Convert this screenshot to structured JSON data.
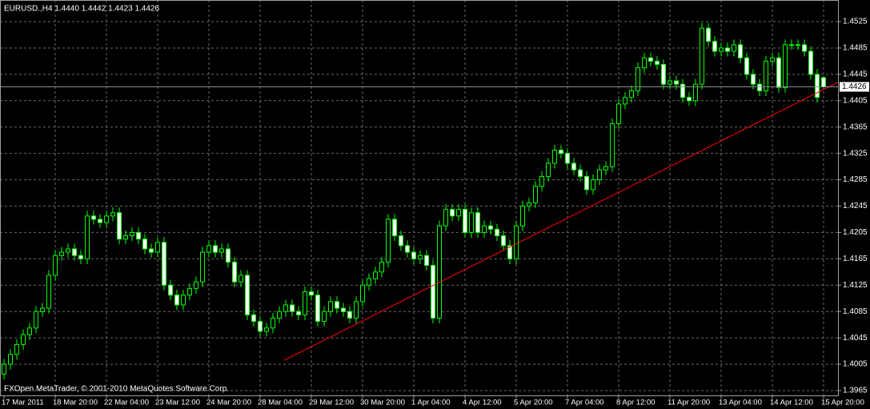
{
  "chart_data": {
    "type": "candlestick",
    "title": "EURUSD.,H4  1.4440 1.4442 1.4423 1.4426",
    "footer": "FXOpen MetaTrader, © 2001-2010 MetaQuotes Software Corp.",
    "categories": [
      "17 Mar 2011",
      null,
      null,
      null,
      null,
      null,
      null,
      null,
      "18 Mar 20:00",
      null,
      null,
      null,
      null,
      null,
      null,
      null,
      "22 Mar 04:00",
      null,
      null,
      null,
      null,
      null,
      null,
      null,
      "23 Mar 12:00",
      null,
      null,
      null,
      null,
      null,
      null,
      null,
      "24 Mar 20:00",
      null,
      null,
      null,
      null,
      null,
      null,
      null,
      "28 Mar 04:00",
      null,
      null,
      null,
      null,
      null,
      null,
      null,
      "29 Mar 12:00",
      null,
      null,
      null,
      null,
      null,
      null,
      null,
      "30 Mar 20:00",
      null,
      null,
      null,
      null,
      null,
      null,
      null,
      "1 Apr 04:00",
      null,
      null,
      null,
      null,
      null,
      null,
      null,
      "4 Apr 12:00",
      null,
      null,
      null,
      null,
      null,
      null,
      null,
      "5 Apr 20:00",
      null,
      null,
      null,
      null,
      null,
      null,
      null,
      "7 Apr 04:00",
      null,
      null,
      null,
      null,
      null,
      null,
      null,
      "8 Apr 12:00",
      null,
      null,
      null,
      null,
      null,
      null,
      null,
      "11 Apr 20:00",
      null,
      null,
      null,
      null,
      null,
      null,
      null,
      "13 Apr 04:00",
      null,
      null,
      null,
      null,
      null,
      null,
      null,
      "14 Apr 12:00",
      null,
      null,
      null,
      null,
      null,
      null,
      null,
      "15 Apr 20:00"
    ],
    "open": [
      1.399,
      1.4005,
      1.402,
      1.4035,
      1.405,
      1.406,
      1.4085,
      1.409,
      1.414,
      1.417,
      1.4175,
      1.418,
      1.417,
      1.4165,
      1.423,
      1.4225,
      1.422,
      1.423,
      1.4235,
      1.4195,
      1.42,
      1.4205,
      1.4195,
      1.418,
      1.4175,
      1.419,
      1.4125,
      1.411,
      1.4095,
      1.411,
      1.412,
      1.413,
      1.4175,
      1.4185,
      1.4175,
      1.418,
      1.416,
      1.413,
      1.414,
      1.408,
      1.407,
      1.4055,
      1.406,
      1.4075,
      1.4085,
      1.4095,
      1.4085,
      1.408,
      1.4115,
      1.411,
      1.407,
      1.4085,
      1.41,
      1.409,
      1.4085,
      1.4075,
      1.41,
      1.4125,
      1.4135,
      1.4145,
      1.416,
      1.4225,
      1.42,
      1.4185,
      1.4175,
      1.4165,
      1.417,
      1.4155,
      1.4075,
      1.4215,
      1.424,
      1.423,
      1.424,
      1.4205,
      1.4235,
      1.4205,
      1.4215,
      1.421,
      1.42,
      1.4185,
      1.4165,
      1.4215,
      1.4245,
      1.425,
      1.4275,
      1.429,
      1.431,
      1.433,
      1.4325,
      1.431,
      1.43,
      1.429,
      1.427,
      1.4285,
      1.43,
      1.4305,
      1.437,
      1.44,
      1.441,
      1.442,
      1.4455,
      1.447,
      1.4465,
      1.446,
      1.443,
      1.4435,
      1.443,
      1.441,
      1.4405,
      1.443,
      1.4515,
      1.4495,
      1.448,
      1.4485,
      1.448,
      1.449,
      1.447,
      1.4445,
      1.443,
      1.442,
      1.4465,
      1.447,
      1.4425,
      1.449,
      1.449,
      1.449,
      1.448,
      1.4445,
      1.444
    ],
    "high": [
      1.4013,
      1.4028,
      1.4043,
      1.4058,
      1.4068,
      1.4093,
      1.4098,
      1.4148,
      1.4178,
      1.4183,
      1.4188,
      1.4188,
      1.4178,
      1.4238,
      1.4238,
      1.4233,
      1.4238,
      1.4243,
      1.4243,
      1.4208,
      1.4213,
      1.4213,
      1.4203,
      1.4188,
      1.4198,
      1.4198,
      1.4133,
      1.4118,
      1.4118,
      1.4128,
      1.4138,
      1.4183,
      1.4193,
      1.4193,
      1.4188,
      1.4188,
      1.4168,
      1.4148,
      1.4148,
      1.4088,
      1.4078,
      1.4068,
      1.4083,
      1.4093,
      1.4103,
      1.4103,
      1.4093,
      1.4123,
      1.4123,
      1.4118,
      1.4093,
      1.4108,
      1.4108,
      1.4098,
      1.4093,
      1.4108,
      1.4133,
      1.4143,
      1.4153,
      1.4168,
      1.4233,
      1.4233,
      1.4208,
      1.4193,
      1.4183,
      1.4178,
      1.4178,
      1.4163,
      1.4223,
      1.4248,
      1.4248,
      1.4248,
      1.4248,
      1.4243,
      1.4243,
      1.4223,
      1.4223,
      1.4218,
      1.4208,
      1.4193,
      1.4223,
      1.4253,
      1.4258,
      1.4283,
      1.4298,
      1.4318,
      1.4338,
      1.4338,
      1.4333,
      1.4318,
      1.4308,
      1.4298,
      1.4293,
      1.4308,
      1.4313,
      1.4378,
      1.4408,
      1.4418,
      1.4428,
      1.4463,
      1.4478,
      1.4478,
      1.4473,
      1.4468,
      1.4443,
      1.4443,
      1.4438,
      1.4418,
      1.4438,
      1.4523,
      1.4523,
      1.4503,
      1.4493,
      1.4493,
      1.4498,
      1.4498,
      1.4478,
      1.4453,
      1.4438,
      1.4473,
      1.4478,
      1.4478,
      1.4498,
      1.4498,
      1.4498,
      1.4498,
      1.4488,
      1.4453,
      1.4442
    ],
    "low": [
      1.3982,
      1.3997,
      1.4012,
      1.4027,
      1.4042,
      1.4052,
      1.4077,
      1.4082,
      1.4132,
      1.4162,
      1.4167,
      1.4162,
      1.4157,
      1.4157,
      1.4217,
      1.4212,
      1.4212,
      1.4222,
      1.4187,
      1.4187,
      1.4192,
      1.4187,
      1.4172,
      1.4167,
      1.4167,
      1.4117,
      1.4102,
      1.4087,
      1.4087,
      1.4102,
      1.4112,
      1.4122,
      1.4167,
      1.4167,
      1.4167,
      1.4152,
      1.4122,
      1.4122,
      1.4072,
      1.4062,
      1.4047,
      1.4047,
      1.4052,
      1.4067,
      1.4077,
      1.4077,
      1.4072,
      1.4072,
      1.4102,
      1.4062,
      1.4062,
      1.4077,
      1.4082,
      1.4077,
      1.4067,
      1.4067,
      1.4092,
      1.4117,
      1.4127,
      1.4137,
      1.4152,
      1.4192,
      1.4177,
      1.4167,
      1.4157,
      1.4157,
      1.4147,
      1.4067,
      1.4067,
      1.4207,
      1.4222,
      1.4222,
      1.4197,
      1.4197,
      1.4197,
      1.4197,
      1.4202,
      1.4192,
      1.4177,
      1.4157,
      1.4157,
      1.4207,
      1.4237,
      1.4242,
      1.4267,
      1.4282,
      1.4302,
      1.4317,
      1.4302,
      1.4292,
      1.4282,
      1.4262,
      1.4262,
      1.4277,
      1.4292,
      1.4297,
      1.4362,
      1.4392,
      1.4402,
      1.4412,
      1.4447,
      1.4457,
      1.4452,
      1.4422,
      1.4422,
      1.4422,
      1.4402,
      1.4397,
      1.4397,
      1.4422,
      1.4487,
      1.4472,
      1.4472,
      1.4472,
      1.4472,
      1.4462,
      1.4437,
      1.4422,
      1.4412,
      1.4412,
      1.4457,
      1.4417,
      1.4417,
      1.4482,
      1.4482,
      1.4472,
      1.4437,
      1.4402,
      1.4423
    ],
    "close": [
      1.4005,
      1.402,
      1.4035,
      1.405,
      1.406,
      1.4085,
      1.409,
      1.414,
      1.417,
      1.4175,
      1.418,
      1.417,
      1.4165,
      1.423,
      1.4225,
      1.422,
      1.423,
      1.4235,
      1.4195,
      1.42,
      1.4205,
      1.4195,
      1.418,
      1.4175,
      1.419,
      1.4125,
      1.411,
      1.4095,
      1.411,
      1.412,
      1.413,
      1.4175,
      1.4185,
      1.4175,
      1.418,
      1.416,
      1.413,
      1.414,
      1.408,
      1.407,
      1.4055,
      1.406,
      1.4075,
      1.4085,
      1.4095,
      1.4085,
      1.408,
      1.4115,
      1.411,
      1.407,
      1.4085,
      1.41,
      1.409,
      1.4085,
      1.4075,
      1.41,
      1.4125,
      1.4135,
      1.4145,
      1.416,
      1.4225,
      1.42,
      1.4185,
      1.4175,
      1.4165,
      1.417,
      1.4155,
      1.4075,
      1.4215,
      1.424,
      1.423,
      1.424,
      1.4205,
      1.4235,
      1.4205,
      1.4215,
      1.421,
      1.42,
      1.4185,
      1.4165,
      1.4215,
      1.4245,
      1.425,
      1.4275,
      1.429,
      1.431,
      1.433,
      1.4325,
      1.431,
      1.43,
      1.429,
      1.427,
      1.4285,
      1.43,
      1.4305,
      1.437,
      1.44,
      1.441,
      1.442,
      1.4455,
      1.447,
      1.4465,
      1.446,
      1.443,
      1.4435,
      1.443,
      1.441,
      1.4405,
      1.443,
      1.4515,
      1.4495,
      1.448,
      1.4485,
      1.448,
      1.449,
      1.447,
      1.4445,
      1.443,
      1.442,
      1.4465,
      1.447,
      1.4425,
      1.449,
      1.449,
      1.449,
      1.448,
      1.4445,
      1.441,
      1.4426
    ],
    "ylim": [
      1.39577,
      1.45481
    ],
    "yticks": [
      1.4525,
      1.4485,
      1.4445,
      1.4405,
      1.4365,
      1.4325,
      1.4285,
      1.4245,
      1.4205,
      1.4165,
      1.4125,
      1.4085,
      1.4045,
      1.4005,
      1.3965
    ],
    "current_price": 1.4426,
    "trendline": {
      "color": "#ff0000",
      "values": [
        1.4011,
        1.4433
      ]
    },
    "grid": true,
    "colors": {
      "up_body": "#000000",
      "down_body": "#ffffff",
      "wick": "#00ff00",
      "grid": "#6a6a6a",
      "price_line": "#8a8a9a"
    }
  }
}
